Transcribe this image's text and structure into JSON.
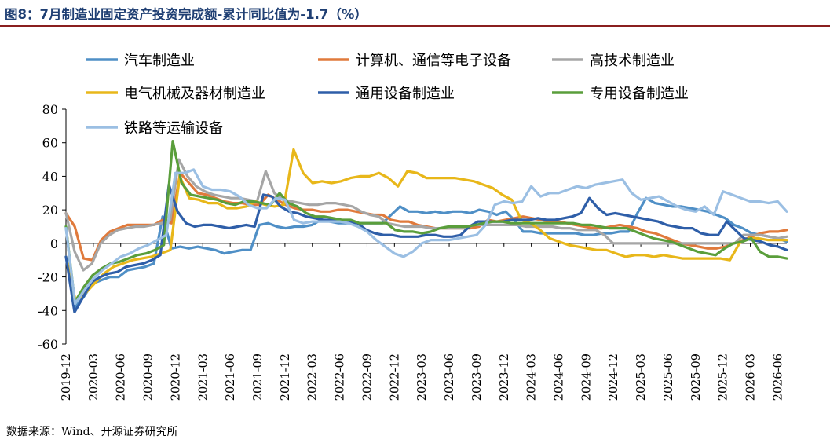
{
  "title": "图8：7月制造业固定资产投资完成额-累计同比值为-1.7（%）",
  "source": "数据来源：Wind、开源证券研究所",
  "chart_data": {
    "type": "line",
    "ylim": [
      -60,
      80
    ],
    "yticks": [
      80,
      60,
      40,
      20,
      0,
      -20,
      -40,
      -60
    ],
    "grid": false,
    "legend_position": "top",
    "x_start": "2019-12",
    "x_end": "2026-07",
    "x_tick_labels": [
      "2019-12",
      "2020-03",
      "2020-06",
      "2020-09",
      "2020-12",
      "2021-03",
      "2021-06",
      "2021-09",
      "2021-12",
      "2022-03",
      "2022-06",
      "2022-09",
      "2022-12",
      "2023-03",
      "2023-06",
      "2023-09",
      "2023-12",
      "2024-03",
      "2024-06",
      "2024-09",
      "2024-12",
      "2025-03",
      "2025-06",
      "2025-09",
      "2025-12",
      "2026-03",
      "2026-06"
    ],
    "series": [
      {
        "name": "汽车制造业",
        "color": "#4f8fc6",
        "values": [
          10,
          -38,
          -32,
          -24,
          -22,
          -20,
          -20,
          -16,
          -15,
          -14,
          -12,
          16,
          -3,
          -2,
          -3,
          -2,
          -3,
          -4,
          -6,
          -5,
          -4,
          -4,
          11,
          12,
          10,
          9,
          10,
          10,
          11,
          14,
          13,
          12,
          12,
          12,
          12,
          12,
          12,
          17,
          22,
          19,
          19,
          18,
          19,
          18,
          19,
          19,
          18,
          20,
          19,
          17,
          19,
          14,
          7,
          7,
          6,
          6,
          6,
          6,
          6,
          5,
          5,
          6,
          6,
          7,
          7,
          18,
          27,
          24,
          23,
          22,
          22,
          21,
          20,
          19,
          17,
          15,
          11,
          9,
          6,
          5,
          4,
          3,
          1
        ]
      },
      {
        "name": "计算机、通信等电子设备",
        "color": "#e07a3c",
        "values": [
          18,
          10,
          -9,
          -10,
          2,
          7,
          9,
          11,
          11,
          11,
          11,
          14,
          12,
          42,
          36,
          30,
          29,
          27,
          25,
          24,
          24,
          23,
          23,
          29,
          26,
          23,
          21,
          20,
          20,
          19,
          19,
          20,
          20,
          19,
          18,
          17,
          17,
          14,
          13,
          13,
          11,
          10,
          9,
          9,
          9,
          9,
          9,
          10,
          14,
          13,
          14,
          15,
          16,
          15,
          14,
          13,
          13,
          12,
          11,
          10,
          9,
          9,
          10,
          11,
          10,
          9,
          7,
          6,
          4,
          2,
          0,
          -1,
          -2,
          -3,
          -3,
          -2,
          0,
          2,
          4,
          6,
          7,
          7,
          8
        ]
      },
      {
        "name": "高技术制造业",
        "color": "#a6a6a6",
        "values": [
          18,
          -5,
          -16,
          -12,
          0,
          5,
          8,
          9,
          10,
          10,
          11,
          12,
          14,
          50,
          40,
          34,
          31,
          29,
          28,
          27,
          27,
          26,
          25,
          43,
          30,
          26,
          25,
          24,
          23,
          23,
          24,
          24,
          23,
          22,
          19,
          17,
          16,
          12,
          11,
          10,
          10,
          10,
          9,
          9,
          9,
          9,
          9,
          11,
          11,
          11,
          11,
          11,
          11,
          10,
          10,
          10,
          10,
          9,
          9,
          8,
          8,
          8,
          5,
          0,
          0,
          0,
          0,
          0,
          0,
          0,
          0,
          0,
          0,
          0,
          0,
          0,
          0,
          0,
          5,
          5,
          5,
          4,
          3,
          4
        ]
      },
      {
        "name": "电气机械及器材制造业",
        "color": "#e8b71a",
        "values": [
          -8,
          -34,
          -30,
          -24,
          -18,
          -14,
          -12,
          -10,
          -9,
          -8,
          -6,
          -4,
          40,
          27,
          26,
          24,
          24,
          21,
          21,
          22,
          25,
          23,
          22,
          23,
          56,
          42,
          36,
          37,
          36,
          37,
          39,
          40,
          40,
          42,
          39,
          34,
          43,
          42,
          39,
          39,
          39,
          39,
          38,
          37,
          35,
          33,
          29,
          26,
          14,
          12,
          8,
          3,
          1,
          -1,
          -2,
          -3,
          -4,
          -4,
          -6,
          -8,
          -7,
          -7,
          -8,
          -7,
          -8,
          -9,
          -9,
          -9,
          -9,
          -9,
          -10,
          0,
          3,
          3,
          2,
          2,
          2
        ]
      },
      {
        "name": "通用设备制造业",
        "color": "#2e5ea8",
        "values": [
          -8,
          -41,
          -32,
          -23,
          -20,
          -18,
          -17,
          -14,
          -13,
          -12,
          -10,
          -7,
          35,
          19,
          12,
          10,
          11,
          11,
          10,
          9,
          10,
          11,
          10,
          29,
          28,
          22,
          19,
          18,
          16,
          15,
          14,
          14,
          14,
          13,
          12,
          8,
          6,
          5,
          5,
          4,
          4,
          4,
          5,
          5,
          4,
          4,
          5,
          10,
          13,
          13,
          13,
          13,
          14,
          14,
          14,
          15,
          14,
          14,
          15,
          16,
          18,
          27,
          21,
          17,
          18,
          17,
          16,
          15,
          14,
          13,
          11,
          10,
          9,
          9,
          6,
          5,
          5,
          13,
          8,
          3,
          2,
          1,
          -1,
          -2,
          -4
        ]
      },
      {
        "name": "专用设备制造业",
        "color": "#5a9e3b",
        "values": [
          10,
          -35,
          -26,
          -19,
          -15,
          -12,
          -11,
          -9,
          -7,
          -6,
          -4,
          -1,
          61,
          36,
          29,
          28,
          27,
          26,
          24,
          23,
          25,
          25,
          24,
          23,
          30,
          24,
          22,
          18,
          16,
          16,
          15,
          14,
          14,
          12,
          12,
          12,
          12,
          8,
          7,
          7,
          6,
          7,
          9,
          10,
          10,
          10,
          11,
          12,
          13,
          13,
          12,
          12,
          12,
          12,
          12,
          12,
          12,
          12,
          11,
          11,
          10,
          9,
          9,
          9,
          7,
          5,
          3,
          2,
          1,
          -1,
          -3,
          -5,
          -6,
          -7,
          -3,
          0,
          1,
          3,
          -5,
          -8,
          -8,
          -9
        ]
      },
      {
        "name": "铁路等运输设备",
        "color": "#9bbfe3",
        "values": [
          9,
          -36,
          -28,
          -21,
          -16,
          -12,
          -8,
          -6,
          -3,
          -1,
          2,
          5,
          42,
          42,
          44,
          34,
          32,
          32,
          31,
          28,
          23,
          21,
          21,
          27,
          26,
          14,
          12,
          13,
          13,
          13,
          13,
          12,
          10,
          7,
          2,
          -2,
          -6,
          -8,
          -5,
          0,
          2,
          2,
          2,
          3,
          4,
          5,
          11,
          23,
          25,
          24,
          25,
          34,
          28,
          30,
          30,
          32,
          34,
          33,
          35,
          36,
          37,
          38,
          30,
          26,
          27,
          28,
          25,
          22,
          20,
          19,
          22,
          17,
          31,
          29,
          27,
          25,
          25,
          24,
          25,
          19
        ]
      }
    ]
  }
}
